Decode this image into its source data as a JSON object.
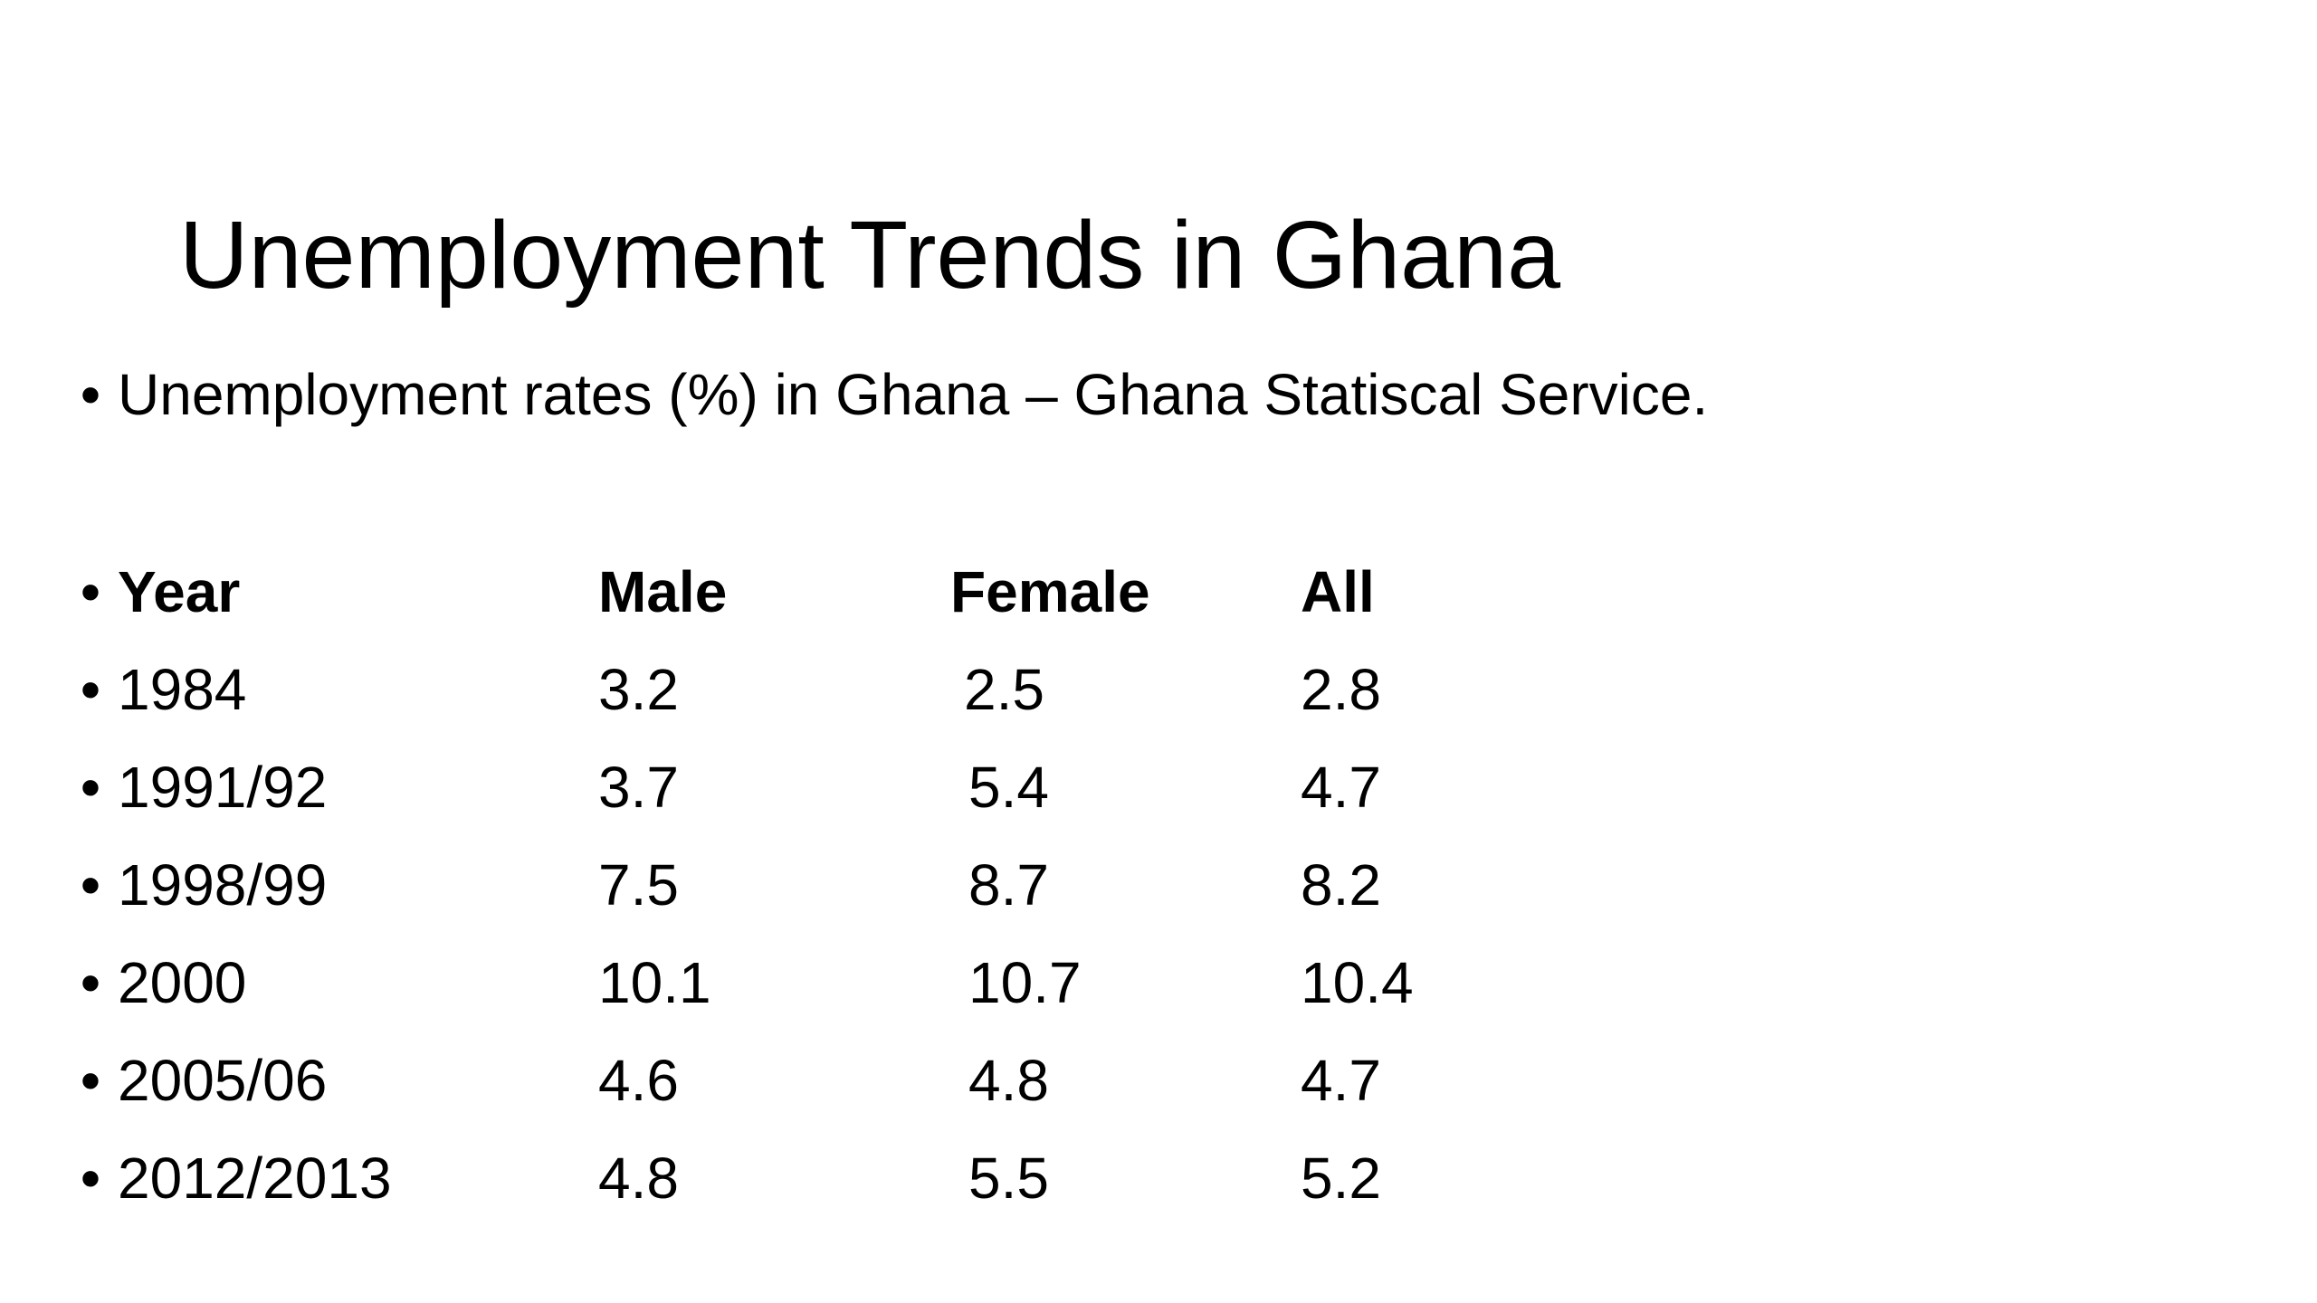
{
  "slide": {
    "title": "Unemployment Trends in Ghana",
    "subtitle": "Unemployment rates (%) in Ghana – Ghana Statiscal Service.",
    "bullet_char": "•"
  },
  "table": {
    "headers": [
      "Year",
      "Male",
      "Female",
      "All"
    ],
    "rows": [
      [
        "1984",
        "3.2",
        "2.5",
        "2.8"
      ],
      [
        "1991/92",
        "3.7",
        "5.4",
        "4.7"
      ],
      [
        "1998/99",
        "7.5",
        "8.7",
        "8.2"
      ],
      [
        "2000",
        "10.1",
        "10.7",
        "10.4"
      ],
      [
        "2005/06",
        "4.6",
        "4.8",
        "4.7"
      ],
      [
        "2012/2013",
        "4.8",
        "5.5",
        "5.2"
      ]
    ]
  }
}
